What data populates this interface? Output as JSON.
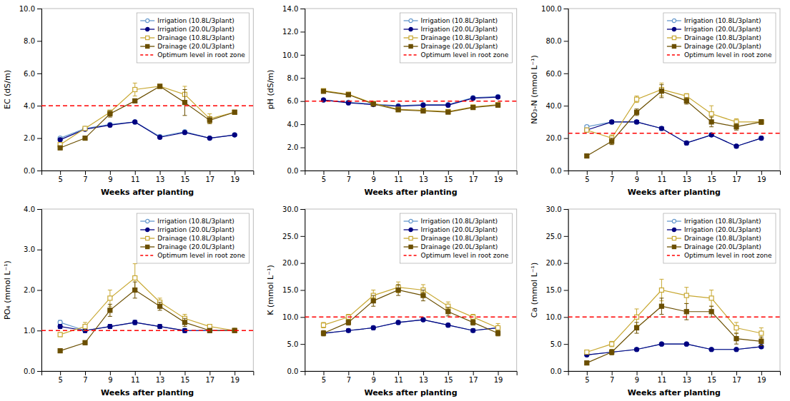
{
  "chart_data": [
    {
      "type": "line",
      "xlabel": "Weeks after planting",
      "ylabel": "EC (dS/m)",
      "x": [
        5,
        7,
        9,
        11,
        13,
        15,
        17,
        19
      ],
      "xlim": [
        3.5,
        20.5
      ],
      "xticks": [
        5,
        7,
        9,
        11,
        13,
        15,
        17,
        19
      ],
      "ylim": [
        0.0,
        10.0
      ],
      "yticks": [
        {
          "value": 0.0,
          "label": "0.0"
        },
        {
          "value": 2.0,
          "label": "2.0"
        },
        {
          "value": 4.0,
          "label": "4.0"
        },
        {
          "value": 6.0,
          "label": "6.0"
        },
        {
          "value": 8.0,
          "label": "8.0"
        },
        {
          "value": 10.0,
          "label": "10.0"
        }
      ],
      "grid": false,
      "legend": "upper right",
      "series": [
        {
          "name": "Irrigation (10.8L/3plant)",
          "color": "#6699CC",
          "marker": "circle-open",
          "values": [
            2.0,
            2.6,
            2.85,
            3.0,
            2.1,
            2.4,
            2.0,
            2.2
          ],
          "errors": [
            0.05,
            0.05,
            0.05,
            0.05,
            0.05,
            0.05,
            0.05,
            0.05
          ]
        },
        {
          "name": "Irrigation (20.0L/3plant)",
          "color": "#000080",
          "marker": "circle",
          "values": [
            1.9,
            2.55,
            2.8,
            3.0,
            2.05,
            2.35,
            2.0,
            2.2
          ],
          "errors": [
            0.05,
            0.05,
            0.05,
            0.05,
            0.05,
            0.05,
            0.05,
            0.05
          ]
        },
        {
          "name": "Drainage (10.8L/3plant)",
          "color": "#C8A832",
          "marker": "square-open",
          "values": [
            1.6,
            2.6,
            3.6,
            5.0,
            5.2,
            4.7,
            3.2,
            3.6
          ],
          "errors": [
            0.05,
            0.05,
            0.05,
            0.4,
            0.05,
            0.5,
            0.3,
            0.1
          ]
        },
        {
          "name": "Drainage (20.0L/3plant)",
          "color": "#6B4F00",
          "marker": "square",
          "values": [
            1.4,
            2.0,
            3.5,
            4.3,
            5.2,
            4.2,
            3.1,
            3.6
          ],
          "errors": [
            0.1,
            0.05,
            0.2,
            0.05,
            0.05,
            0.8,
            0.2,
            0.1
          ]
        },
        {
          "name": "Optimum level in root zone",
          "type": "hline",
          "color": "red",
          "line_style": "dashed",
          "value": 4.0
        }
      ]
    },
    {
      "type": "line",
      "xlabel": "Weeks after planting",
      "ylabel": "pH (dS/m)",
      "x": [
        5,
        7,
        9,
        11,
        13,
        15,
        17,
        19
      ],
      "xlim": [
        3.5,
        20.5
      ],
      "xticks": [
        5,
        7,
        9,
        11,
        13,
        15,
        17,
        19
      ],
      "ylim": [
        0.0,
        14.0
      ],
      "yticks": [
        {
          "value": 0.0,
          "label": "0.0"
        },
        {
          "value": 2.0,
          "label": "2.0"
        },
        {
          "value": 4.0,
          "label": "4.0"
        },
        {
          "value": 6.0,
          "label": "6.0"
        },
        {
          "value": 8.0,
          "label": "8.0"
        },
        {
          "value": 10.0,
          "label": "10.0"
        },
        {
          "value": 12.0,
          "label": "12.0"
        },
        {
          "value": 14.0,
          "label": "14.0"
        }
      ],
      "grid": false,
      "legend": "upper right",
      "series": [
        {
          "name": "Irrigation (10.8L/3plant)",
          "color": "#6699CC",
          "marker": "circle-open",
          "values": [
            6.1,
            5.9,
            5.75,
            5.6,
            5.7,
            5.7,
            6.3,
            6.4
          ],
          "errors": [
            0.05,
            0.05,
            0.05,
            0.05,
            0.05,
            0.05,
            0.05,
            0.05
          ]
        },
        {
          "name": "Irrigation (20.0L/3plant)",
          "color": "#000080",
          "marker": "circle",
          "values": [
            6.1,
            5.85,
            5.7,
            5.55,
            5.65,
            5.65,
            6.25,
            6.35
          ],
          "errors": [
            0.05,
            0.05,
            0.05,
            0.05,
            0.05,
            0.05,
            0.05,
            0.05
          ]
        },
        {
          "name": "Drainage (10.8L/3plant)",
          "color": "#C8A832",
          "marker": "square-open",
          "values": [
            6.9,
            6.6,
            5.8,
            5.3,
            5.2,
            5.1,
            5.5,
            5.7
          ],
          "errors": [
            0.1,
            0.15,
            0.1,
            0.1,
            0.05,
            0.05,
            0.1,
            0.05
          ]
        },
        {
          "name": "Drainage (20.0L/3plant)",
          "color": "#6B4F00",
          "marker": "square",
          "values": [
            6.85,
            6.55,
            5.75,
            5.25,
            5.15,
            5.05,
            5.45,
            5.65
          ],
          "errors": [
            0.1,
            0.1,
            0.05,
            0.1,
            0.05,
            0.05,
            0.05,
            0.05
          ]
        },
        {
          "name": "Optimum level in root zone",
          "type": "hline",
          "color": "red",
          "line_style": "dashed",
          "value": 6.0
        }
      ]
    },
    {
      "type": "line",
      "xlabel": "Weeks after planting",
      "ylabel": "NO₃-N (mmol L⁻¹)",
      "x": [
        5,
        7,
        9,
        11,
        13,
        15,
        17,
        19
      ],
      "xlim": [
        3.5,
        20.5
      ],
      "xticks": [
        5,
        7,
        9,
        11,
        13,
        15,
        17,
        19
      ],
      "ylim": [
        0.0,
        100.0
      ],
      "yticks": [
        {
          "value": 0.0,
          "label": "0.0"
        },
        {
          "value": 20.0,
          "label": "20.0"
        },
        {
          "value": 40.0,
          "label": "40.0"
        },
        {
          "value": 60.0,
          "label": "60.0"
        },
        {
          "value": 80.0,
          "label": "80.0"
        },
        {
          "value": 100.0,
          "label": "100.0"
        }
      ],
      "grid": false,
      "legend": "upper right",
      "series": [
        {
          "name": "Irrigation (10.8L/3plant)",
          "color": "#6699CC",
          "marker": "circle-open",
          "values": [
            27.0,
            30.0,
            30.0,
            26.0,
            17.0,
            22.0,
            15.0,
            20.0
          ],
          "errors": [
            1.0,
            1.0,
            1.0,
            1.0,
            1.0,
            1.0,
            1.0,
            1.0
          ]
        },
        {
          "name": "Irrigation (20.0L/3plant)",
          "color": "#000080",
          "marker": "circle",
          "values": [
            25.0,
            30.0,
            30.0,
            26.0,
            17.0,
            22.0,
            15.0,
            20.0
          ],
          "errors": [
            1.0,
            1.0,
            1.0,
            1.0,
            1.0,
            1.0,
            1.0,
            1.0
          ]
        },
        {
          "name": "Drainage (10.8L/3plant)",
          "color": "#C8A832",
          "marker": "square-open",
          "values": [
            25.0,
            20.0,
            44.0,
            50.0,
            46.0,
            35.0,
            30.0,
            30.0
          ],
          "errors": [
            1.0,
            2.0,
            2.0,
            4.0,
            1.5,
            5.0,
            2.0,
            1.5
          ]
        },
        {
          "name": "Drainage (20.0L/3plant)",
          "color": "#6B4F00",
          "marker": "square",
          "values": [
            9.0,
            18.0,
            36.0,
            49.0,
            43.0,
            30.0,
            27.0,
            30.0
          ],
          "errors": [
            1.0,
            2.0,
            2.0,
            4.0,
            2.0,
            3.0,
            2.0,
            1.5
          ]
        },
        {
          "name": "Optimum level in root zone",
          "type": "hline",
          "color": "red",
          "line_style": "dashed",
          "value": 23.0
        }
      ]
    },
    {
      "type": "line",
      "xlabel": "Weeks after planting",
      "ylabel": "PO₄ (mmol L⁻¹)",
      "x": [
        5,
        7,
        9,
        11,
        13,
        15,
        17,
        19
      ],
      "xlim": [
        3.5,
        20.5
      ],
      "xticks": [
        5,
        7,
        9,
        11,
        13,
        15,
        17,
        19
      ],
      "ylim": [
        0.0,
        4.0
      ],
      "yticks": [
        {
          "value": 0.0,
          "label": "0.0"
        },
        {
          "value": 1.0,
          "label": "1.0"
        },
        {
          "value": 2.0,
          "label": "2.0"
        },
        {
          "value": 3.0,
          "label": "3.0"
        },
        {
          "value": 4.0,
          "label": "4.0"
        }
      ],
      "grid": false,
      "legend": "upper right",
      "series": [
        {
          "name": "Irrigation (10.8L/3plant)",
          "color": "#6699CC",
          "marker": "circle-open",
          "values": [
            1.2,
            1.0,
            1.1,
            1.2,
            1.1,
            1.0,
            1.0,
            1.0
          ],
          "errors": [
            0.05,
            0.05,
            0.05,
            0.05,
            0.05,
            0.05,
            0.05,
            0.05
          ]
        },
        {
          "name": "Irrigation (20.0L/3plant)",
          "color": "#000080",
          "marker": "circle",
          "values": [
            1.1,
            1.0,
            1.1,
            1.2,
            1.1,
            1.0,
            1.0,
            1.0
          ],
          "errors": [
            0.05,
            0.05,
            0.05,
            0.05,
            0.05,
            0.05,
            0.05,
            0.05
          ]
        },
        {
          "name": "Drainage (10.8L/3plant)",
          "color": "#C8A832",
          "marker": "square-open",
          "values": [
            0.9,
            1.1,
            1.8,
            2.3,
            1.7,
            1.3,
            1.1,
            1.0
          ],
          "errors": [
            0.05,
            0.1,
            0.2,
            0.35,
            0.1,
            0.1,
            0.05,
            0.05
          ]
        },
        {
          "name": "Drainage (20.0L/3plant)",
          "color": "#6B4F00",
          "marker": "square",
          "values": [
            0.5,
            0.7,
            1.5,
            2.0,
            1.6,
            1.2,
            1.0,
            1.0
          ],
          "errors": [
            0.05,
            0.05,
            0.15,
            0.2,
            0.1,
            0.1,
            0.05,
            0.05
          ]
        },
        {
          "name": "Optimum level in root zone",
          "type": "hline",
          "color": "red",
          "line_style": "dashed",
          "value": 1.0
        }
      ]
    },
    {
      "type": "line",
      "xlabel": "Weeks after planting",
      "ylabel": "K (mmol L⁻¹)",
      "x": [
        5,
        7,
        9,
        11,
        13,
        15,
        17,
        19
      ],
      "xlim": [
        3.5,
        20.5
      ],
      "xticks": [
        5,
        7,
        9,
        11,
        13,
        15,
        17,
        19
      ],
      "ylim": [
        0.0,
        30.0
      ],
      "yticks": [
        {
          "value": 0.0,
          "label": "0.0"
        },
        {
          "value": 5.0,
          "label": "5.0"
        },
        {
          "value": 10.0,
          "label": "10.0"
        },
        {
          "value": 15.0,
          "label": "15.0"
        },
        {
          "value": 20.0,
          "label": "20.0"
        },
        {
          "value": 25.0,
          "label": "25.0"
        },
        {
          "value": 30.0,
          "label": "30.0"
        }
      ],
      "grid": false,
      "legend": "upper right",
      "series": [
        {
          "name": "Irrigation (10.8L/3plant)",
          "color": "#6699CC",
          "marker": "circle-open",
          "values": [
            7.0,
            7.5,
            8.0,
            9.0,
            9.5,
            8.5,
            7.5,
            8.0
          ],
          "errors": [
            0.3,
            0.3,
            0.3,
            0.3,
            0.3,
            0.3,
            0.3,
            0.3
          ]
        },
        {
          "name": "Irrigation (20.0L/3plant)",
          "color": "#000080",
          "marker": "circle",
          "values": [
            7.0,
            7.5,
            8.0,
            9.0,
            9.5,
            8.5,
            7.5,
            8.0
          ],
          "errors": [
            0.3,
            0.3,
            0.3,
            0.3,
            0.3,
            0.3,
            0.3,
            0.3
          ]
        },
        {
          "name": "Drainage (10.8L/3plant)",
          "color": "#C8A832",
          "marker": "square-open",
          "values": [
            8.5,
            10.0,
            14.0,
            15.5,
            15.0,
            12.0,
            10.0,
            8.0
          ],
          "errors": [
            0.5,
            0.5,
            1.0,
            1.0,
            1.0,
            0.8,
            0.5,
            0.8
          ]
        },
        {
          "name": "Drainage (20.0L/3plant)",
          "color": "#6B4F00",
          "marker": "square",
          "values": [
            7.0,
            9.0,
            13.0,
            15.0,
            14.0,
            11.0,
            9.0,
            7.0
          ],
          "errors": [
            0.5,
            0.5,
            1.0,
            1.0,
            1.0,
            0.8,
            0.5,
            0.5
          ]
        },
        {
          "name": "Optimum level in root zone",
          "type": "hline",
          "color": "red",
          "line_style": "dashed",
          "value": 10.0
        }
      ]
    },
    {
      "type": "line",
      "xlabel": "Weeks after planting",
      "ylabel": "Ca (mmol L⁻¹)",
      "x": [
        5,
        7,
        9,
        11,
        13,
        15,
        17,
        19
      ],
      "xlim": [
        3.5,
        20.5
      ],
      "xticks": [
        5,
        7,
        9,
        11,
        13,
        15,
        17,
        19
      ],
      "ylim": [
        0.0,
        30.0
      ],
      "yticks": [
        {
          "value": 0.0,
          "label": "0.0"
        },
        {
          "value": 5.0,
          "label": "5.0"
        },
        {
          "value": 10.0,
          "label": "10.0"
        },
        {
          "value": 15.0,
          "label": "15.0"
        },
        {
          "value": 20.0,
          "label": "20.0"
        },
        {
          "value": 25.0,
          "label": "25.0"
        },
        {
          "value": 30.0,
          "label": "30.0"
        }
      ],
      "grid": false,
      "legend": "upper right",
      "series": [
        {
          "name": "Irrigation (10.8L/3plant)",
          "color": "#6699CC",
          "marker": "circle-open",
          "values": [
            3.0,
            3.5,
            4.0,
            5.0,
            5.0,
            4.0,
            4.0,
            4.5
          ],
          "errors": [
            0.2,
            0.2,
            0.2,
            0.2,
            0.2,
            0.2,
            0.2,
            0.2
          ]
        },
        {
          "name": "Irrigation (20.0L/3plant)",
          "color": "#000080",
          "marker": "circle",
          "values": [
            3.0,
            3.5,
            4.0,
            5.0,
            5.0,
            4.0,
            4.0,
            4.5
          ],
          "errors": [
            0.2,
            0.2,
            0.2,
            0.2,
            0.2,
            0.2,
            0.2,
            0.2
          ]
        },
        {
          "name": "Drainage (10.8L/3plant)",
          "color": "#C8A832",
          "marker": "square-open",
          "values": [
            3.5,
            5.0,
            10.0,
            15.0,
            14.0,
            13.5,
            8.0,
            7.0
          ],
          "errors": [
            0.3,
            0.5,
            1.5,
            2.0,
            1.5,
            1.5,
            1.0,
            1.0
          ]
        },
        {
          "name": "Drainage (20.0L/3plant)",
          "color": "#6B4F00",
          "marker": "square",
          "values": [
            1.5,
            3.5,
            8.0,
            12.0,
            11.0,
            11.0,
            6.0,
            5.5
          ],
          "errors": [
            0.3,
            0.5,
            1.0,
            1.5,
            1.5,
            1.0,
            1.0,
            0.8
          ]
        },
        {
          "name": "Optimum level in root zone",
          "type": "hline",
          "color": "red",
          "line_style": "dashed",
          "value": 10.0
        }
      ]
    }
  ]
}
